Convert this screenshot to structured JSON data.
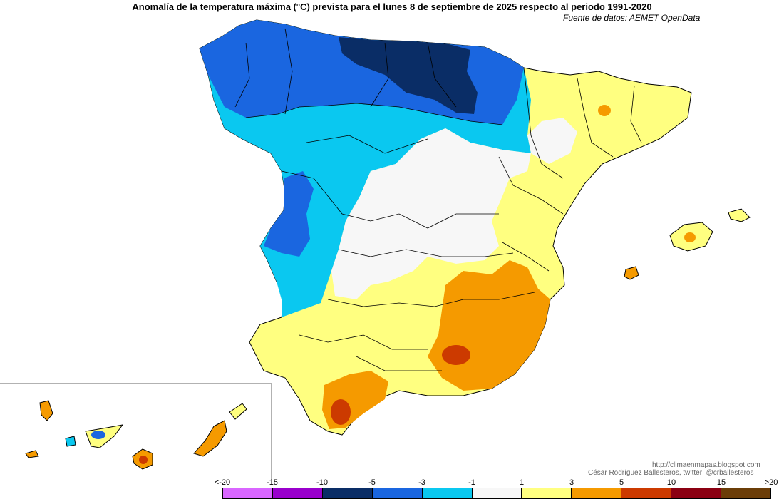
{
  "title": "Anomalía de la temperatura máxima (°C) prevista para el lunes 8 de septiembre de 2025 respecto al periodo 1991-2020",
  "source": "Fuente de datos: AEMET OpenData",
  "credits": {
    "url": "http://climaenmapas.blogspot.com",
    "author": "César Rodríguez Ballesteros, twitter: @crballesteros"
  },
  "legend": {
    "ticks": [
      "<-20",
      "-15",
      "-10",
      "-5",
      "-3",
      "-1",
      "1",
      "3",
      "5",
      "10",
      "15",
      ">20"
    ],
    "colors": [
      "#d966ff",
      "#9900cc",
      "#0a2d66",
      "#1a66e0",
      "#0ac8f0",
      "#f7f7f7",
      "#ffff80",
      "#f59a00",
      "#cc3a00",
      "#8b0012",
      "#6b3d08"
    ]
  },
  "palette": {
    "dark_blue": "#0a2d66",
    "blue": "#1a66e0",
    "light_blue": "#0ac8f0",
    "white": "#f7f7f7",
    "yellow": "#ffff80",
    "orange": "#f59a00",
    "red": "#cc3a00",
    "border": "#000000"
  },
  "regions": [
    {
      "name": "peninsula",
      "color": "#ffff80"
    },
    {
      "name": "northwest",
      "color": "#0ac8f0"
    },
    {
      "name": "galicia-cantabric",
      "color": "#1a66e0"
    },
    {
      "name": "cantabria-basque",
      "color": "#0a2d66"
    },
    {
      "name": "central",
      "color": "#f7f7f7"
    },
    {
      "name": "southeast",
      "color": "#f59a00"
    },
    {
      "name": "malaga",
      "color": "#f59a00"
    },
    {
      "name": "granada-core",
      "color": "#cc3a00"
    },
    {
      "name": "balearic-islands",
      "color": "#ffff80"
    },
    {
      "name": "canary-islands",
      "color": "#f59a00"
    }
  ]
}
